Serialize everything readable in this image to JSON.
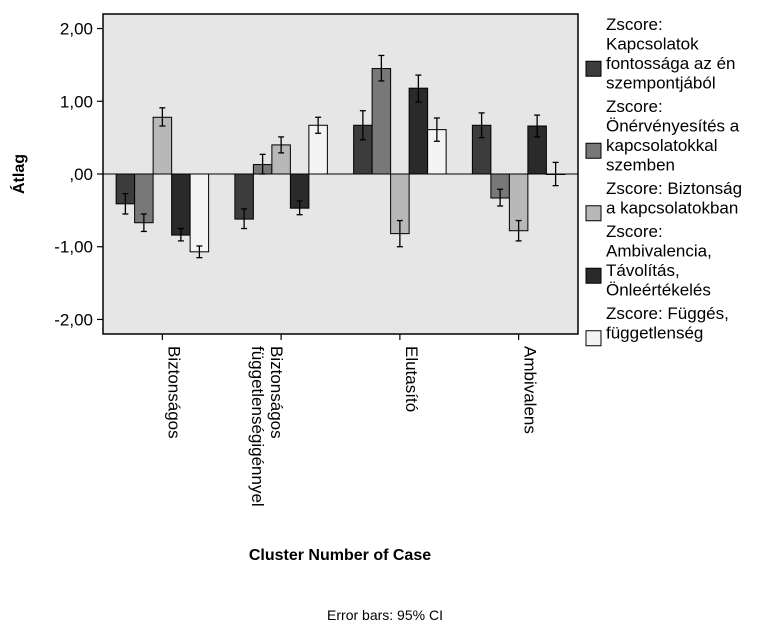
{
  "chart_data": {
    "type": "bar",
    "xlabel": "Cluster Number of Case",
    "ylabel": "Átlag",
    "ylim": [
      -2.2,
      2.2
    ],
    "yticks": [
      2,
      1,
      0,
      -1,
      -2
    ],
    "ytick_labels": [
      "2,00",
      "1,00",
      ",00",
      "-1,00",
      "-2,00"
    ],
    "grid": false,
    "legend_position": "right",
    "background_color": "#e6e6e6",
    "categories": [
      "Biztonságos",
      "Biztonságos függetlenségigénnyel",
      "Elutasító",
      "Ambivalens"
    ],
    "category_lines": [
      [
        "Biztonságos"
      ],
      [
        "Biztonságos",
        "függetlenségigénnyel"
      ],
      [
        "Elutasító"
      ],
      [
        "Ambivalens"
      ]
    ],
    "series": [
      {
        "name": "Zscore: Kapcsolatok fontossága az én szempontjából",
        "legend_lines": [
          "Zscore:",
          "Kapcsolatok",
          "fontossága az én",
          "szempontjából"
        ],
        "color": "#3c3c3c",
        "values": [
          -0.41,
          -0.62,
          0.67,
          0.67
        ],
        "ci_low": [
          -0.55,
          -0.75,
          0.47,
          0.5
        ],
        "ci_high": [
          -0.27,
          -0.48,
          0.87,
          0.84
        ]
      },
      {
        "name": "Zscore: Önérvényesítés a kapcsolatokkal szemben",
        "legend_lines": [
          "Zscore:",
          "Önérvényesítés a",
          "kapcsolatokkal",
          "szemben"
        ],
        "color": "#787878",
        "values": [
          -0.67,
          0.13,
          1.45,
          -0.33
        ],
        "ci_low": [
          -0.79,
          0.0,
          1.28,
          -0.44
        ],
        "ci_high": [
          -0.55,
          0.27,
          1.63,
          -0.21
        ]
      },
      {
        "name": "Zscore: Biztonság a kapcsolatokban",
        "legend_lines": [
          "Zscore:  Biztonság",
          "a kapcsolatokban"
        ],
        "color": "#b8b8b8",
        "values": [
          0.78,
          0.4,
          -0.82,
          -0.78
        ],
        "ci_low": [
          0.66,
          0.29,
          -1.0,
          -0.92
        ],
        "ci_high": [
          0.91,
          0.51,
          -0.64,
          -0.64
        ]
      },
      {
        "name": "Zscore: Ambivalencia, Távolítás, Önleértékelés",
        "legend_lines": [
          "Zscore:",
          "Ambivalencia,",
          "Távolítás,",
          "Önleértékelés"
        ],
        "color": "#2a2a2a",
        "values": [
          -0.84,
          -0.47,
          1.18,
          0.66
        ],
        "ci_low": [
          -0.92,
          -0.56,
          0.99,
          0.51
        ],
        "ci_high": [
          -0.75,
          -0.37,
          1.36,
          0.81
        ]
      },
      {
        "name": "Zscore: Függés, függetlenség",
        "legend_lines": [
          "Zscore:  Függés,",
          "függetlenség"
        ],
        "color": "#f4f4f4",
        "values": [
          -1.07,
          0.67,
          0.61,
          0.0
        ],
        "ci_low": [
          -1.15,
          0.56,
          0.45,
          -0.16
        ],
        "ci_high": [
          -0.99,
          0.78,
          0.77,
          0.16
        ]
      }
    ]
  },
  "footnote": "Error bars: 95% CI"
}
